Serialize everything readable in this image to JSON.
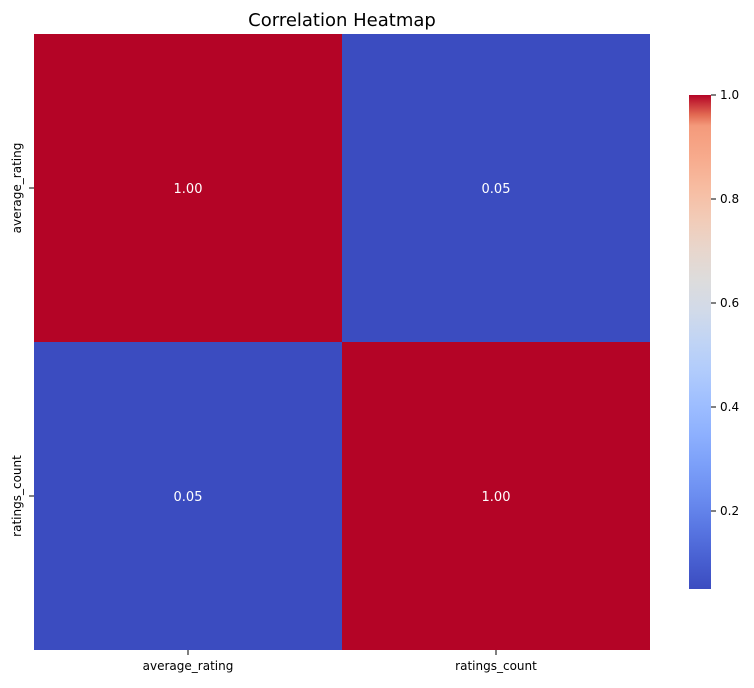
{
  "chart_data": {
    "type": "heatmap",
    "title": "Correlation Heatmap",
    "x_categories": [
      "average_rating",
      "ratings_count"
    ],
    "y_categories": [
      "average_rating",
      "ratings_count"
    ],
    "matrix": [
      [
        1.0,
        0.05
      ],
      [
        0.05,
        1.0
      ]
    ],
    "annotations": [
      [
        "1.00",
        "0.05"
      ],
      [
        "0.05",
        "1.00"
      ]
    ],
    "colormap": "coolwarm",
    "colors": {
      "low": "#3b4cc0",
      "high": "#b40426",
      "annotation_text": "#ffffff"
    },
    "colorbar": {
      "range": [
        0.05,
        1.0
      ],
      "ticks": [
        0.2,
        0.4,
        0.6,
        0.8,
        1.0
      ],
      "tick_labels": [
        "0.2",
        "0.4",
        "0.6",
        "0.8",
        "1.0"
      ]
    }
  }
}
